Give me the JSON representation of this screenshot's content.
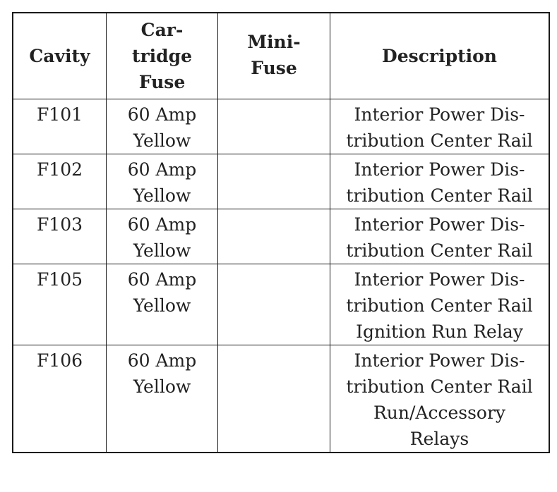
{
  "table": {
    "headers": [
      {
        "lines": [
          "Cavity"
        ]
      },
      {
        "lines": [
          "Car-",
          "tridge",
          "Fuse"
        ]
      },
      {
        "lines": [
          "Mini-",
          "Fuse"
        ]
      },
      {
        "lines": [
          "Description"
        ]
      }
    ],
    "rows": [
      {
        "cavity": "F101",
        "cartridge": [
          "60 Amp",
          "Yellow"
        ],
        "mini": "",
        "description": [
          "Interior Power Dis-",
          "tribution Center Rail"
        ]
      },
      {
        "cavity": "F102",
        "cartridge": [
          "60 Amp",
          "Yellow"
        ],
        "mini": "",
        "description": [
          "Interior Power Dis-",
          "tribution Center Rail"
        ]
      },
      {
        "cavity": "F103",
        "cartridge": [
          "60 Amp",
          "Yellow"
        ],
        "mini": "",
        "description": [
          "Interior Power Dis-",
          "tribution Center Rail"
        ]
      },
      {
        "cavity": "F105",
        "cartridge": [
          "60 Amp",
          "Yellow"
        ],
        "mini": "",
        "description": [
          "Interior Power Dis-",
          "tribution Center Rail",
          "Ignition Run Relay"
        ]
      },
      {
        "cavity": "F106",
        "cartridge": [
          "60 Amp",
          "Yellow"
        ],
        "mini": "",
        "description": [
          "Interior Power Dis-",
          "tribution Center Rail",
          "Run/Accessory",
          "Relays"
        ]
      }
    ]
  }
}
